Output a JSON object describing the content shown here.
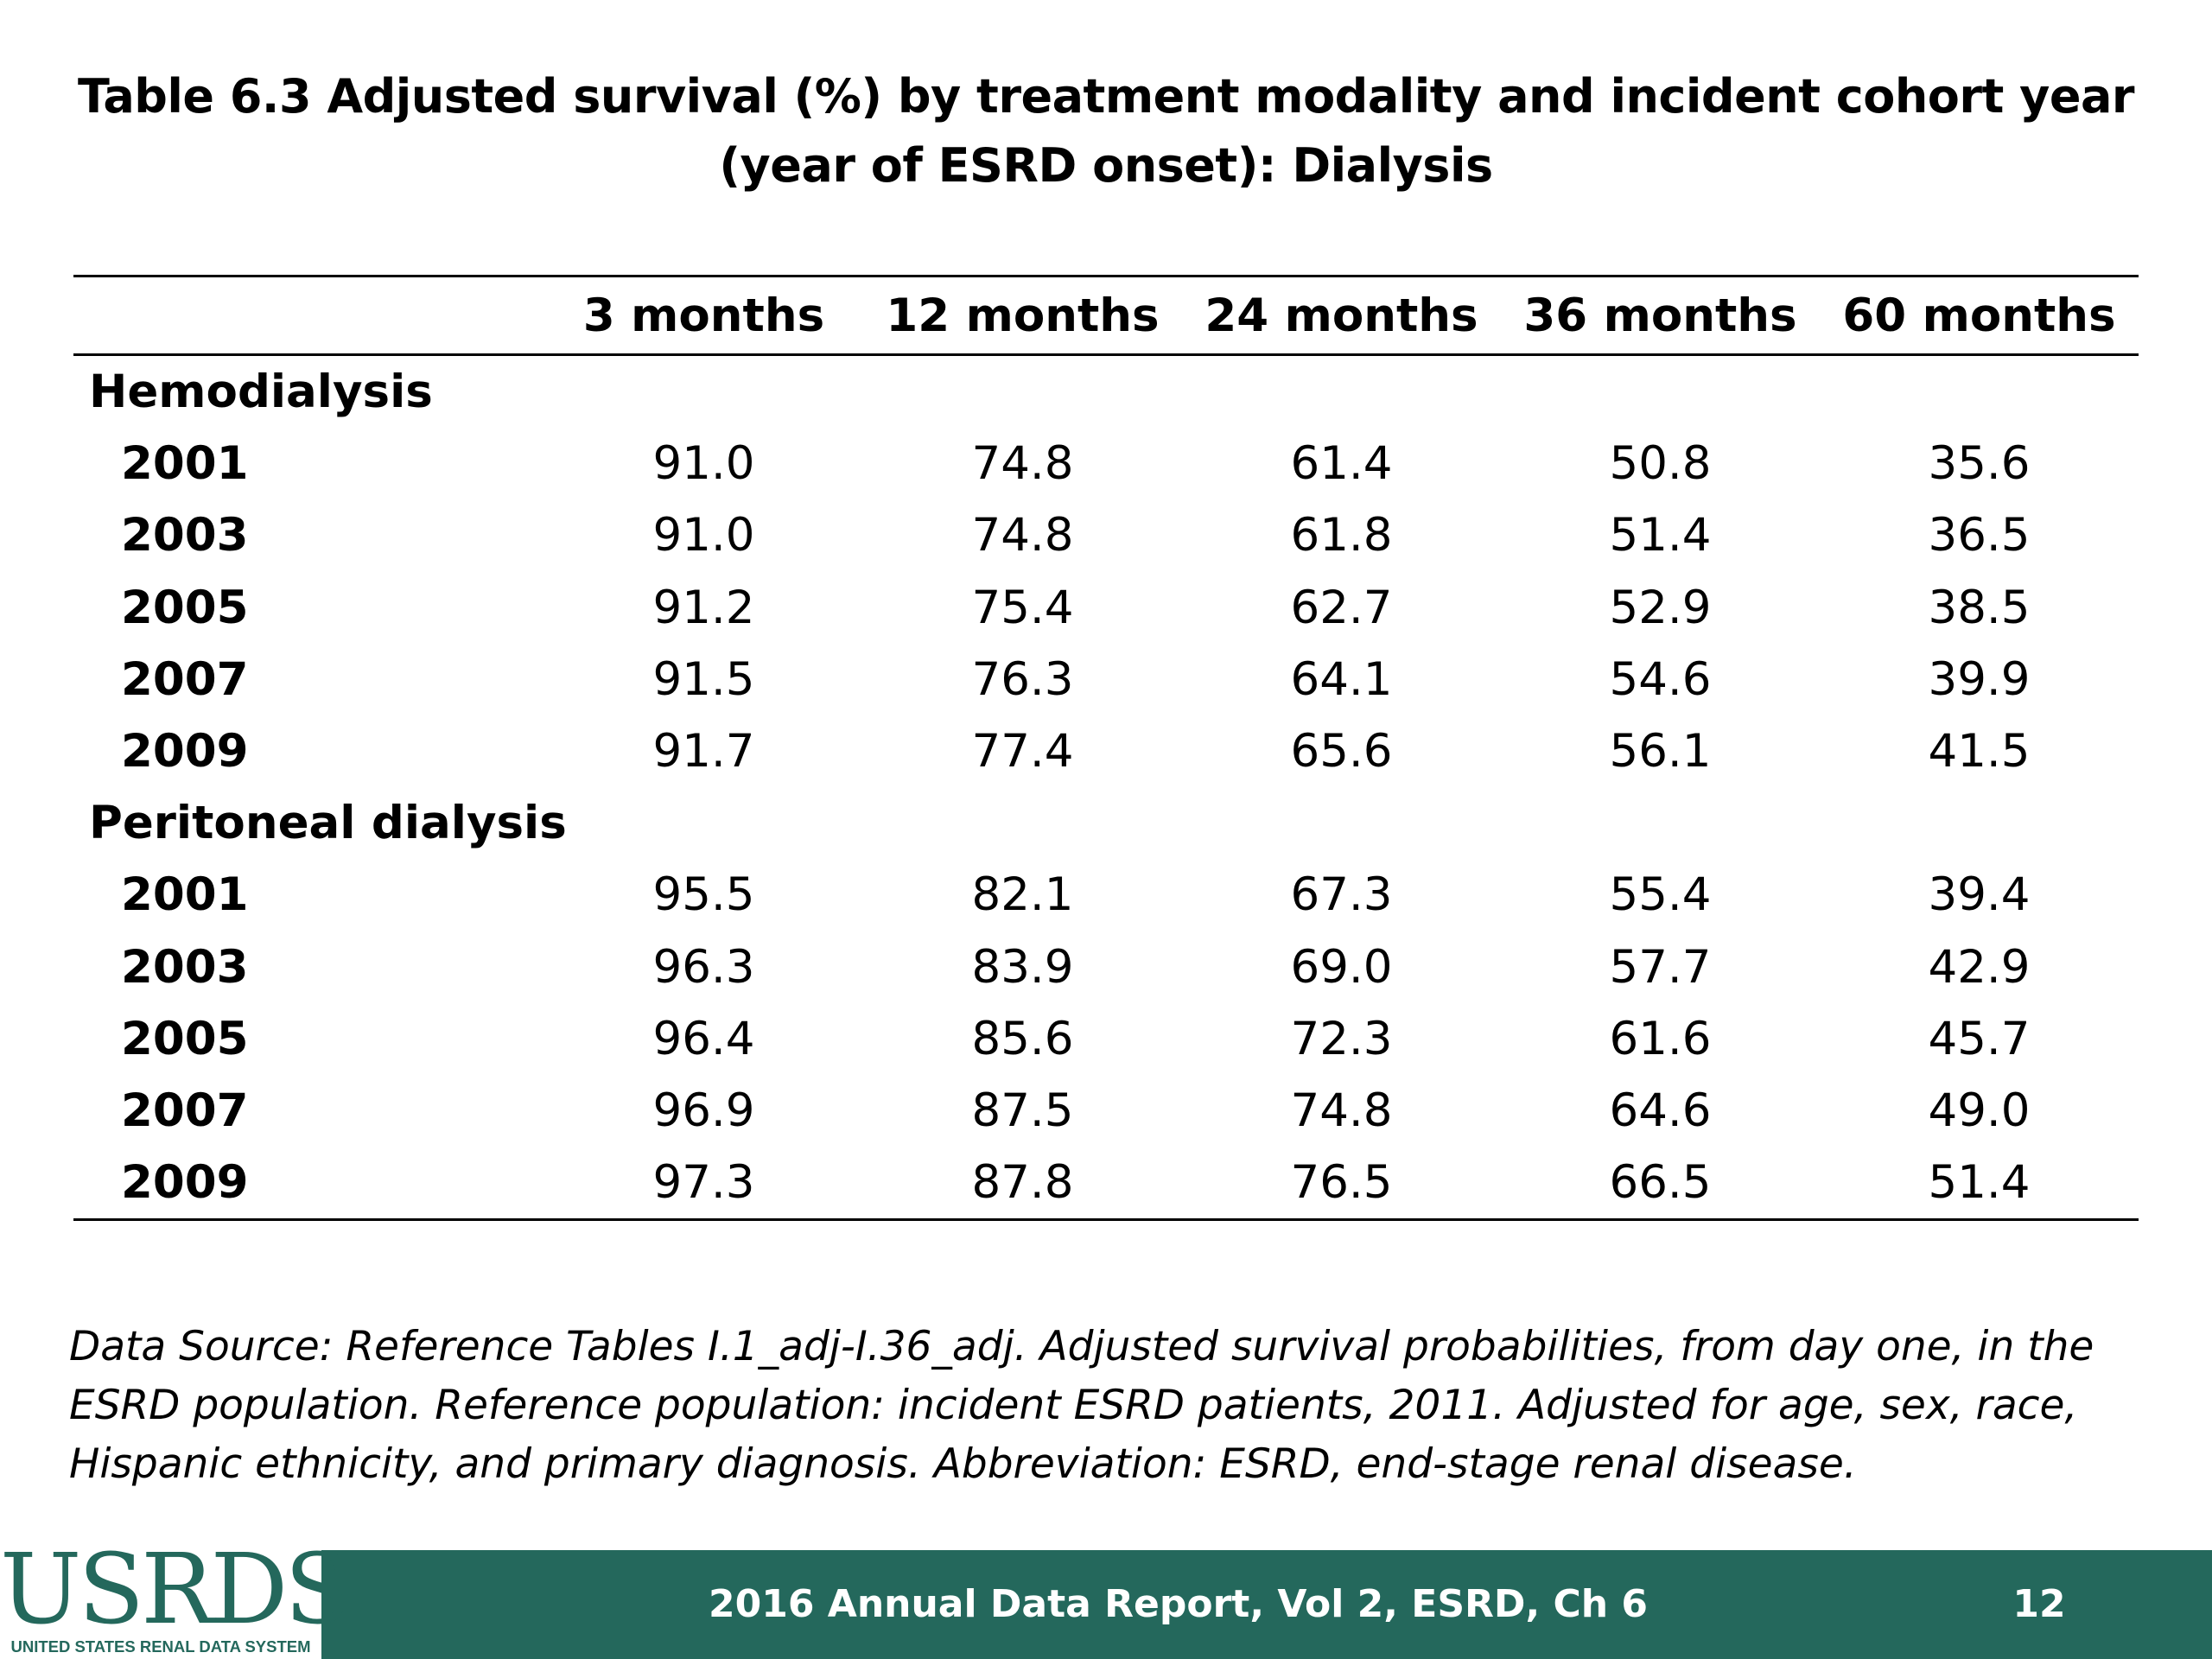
{
  "slide": {
    "title": "Table 6.3  Adjusted survival (%) by treatment modality and incident cohort year (year of ESRD onset): Dialysis",
    "footnote": "Data Source: Reference Tables I.1_adj-I.36_adj. Adjusted survival probabilities, from day one, in the ESRD population. Reference population: incident ESRD patients, 2011. Adjusted for age, sex, race, Hispanic ethnicity, and primary diagnosis. Abbreviation: ESRD, end-stage renal disease."
  },
  "table": {
    "columns": [
      "",
      "3 months",
      "12 months",
      "24 months",
      "36 months",
      "60 months"
    ],
    "groups": [
      {
        "label": "Hemodialysis",
        "rows": [
          {
            "year": "2001",
            "values": [
              "91.0",
              "74.8",
              "61.4",
              "50.8",
              "35.6"
            ]
          },
          {
            "year": "2003",
            "values": [
              "91.0",
              "74.8",
              "61.8",
              "51.4",
              "36.5"
            ]
          },
          {
            "year": "2005",
            "values": [
              "91.2",
              "75.4",
              "62.7",
              "52.9",
              "38.5"
            ]
          },
          {
            "year": "2007",
            "values": [
              "91.5",
              "76.3",
              "64.1",
              "54.6",
              "39.9"
            ]
          },
          {
            "year": "2009",
            "values": [
              "91.7",
              "77.4",
              "65.6",
              "56.1",
              "41.5"
            ]
          }
        ]
      },
      {
        "label": "Peritoneal dialysis",
        "rows": [
          {
            "year": "2001",
            "values": [
              "95.5",
              "82.1",
              "67.3",
              "55.4",
              "39.4"
            ]
          },
          {
            "year": "2003",
            "values": [
              "96.3",
              "83.9",
              "69.0",
              "57.7",
              "42.9"
            ]
          },
          {
            "year": "2005",
            "values": [
              "96.4",
              "85.6",
              "72.3",
              "61.6",
              "45.7"
            ]
          },
          {
            "year": "2007",
            "values": [
              "96.9",
              "87.5",
              "74.8",
              "64.6",
              "49.0"
            ]
          },
          {
            "year": "2009",
            "values": [
              "97.3",
              "87.8",
              "76.5",
              "66.5",
              "51.4"
            ]
          }
        ]
      }
    ]
  },
  "footer": {
    "logo_text": "USRDS",
    "logo_subtext": "UNITED STATES RENAL DATA SYSTEM",
    "report_label": "2016 Annual Data Report, Vol 2, ESRD, Ch 6",
    "page_number": "12",
    "color": "#24685c"
  }
}
